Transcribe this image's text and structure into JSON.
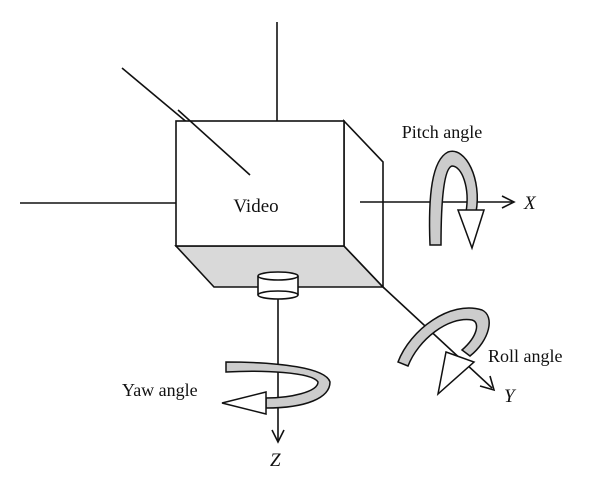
{
  "diagram": {
    "labels": {
      "box": "Video",
      "pitch": "Pitch angle",
      "roll": "Roll angle",
      "yaw": "Yaw angle",
      "x_axis": "X",
      "y_axis": "Y",
      "z_axis": "Z"
    },
    "colors": {
      "stroke": "#111111",
      "face_shade": "#d9d9d9",
      "arrow_fill": "#cccccc",
      "background": "#ffffff"
    }
  }
}
